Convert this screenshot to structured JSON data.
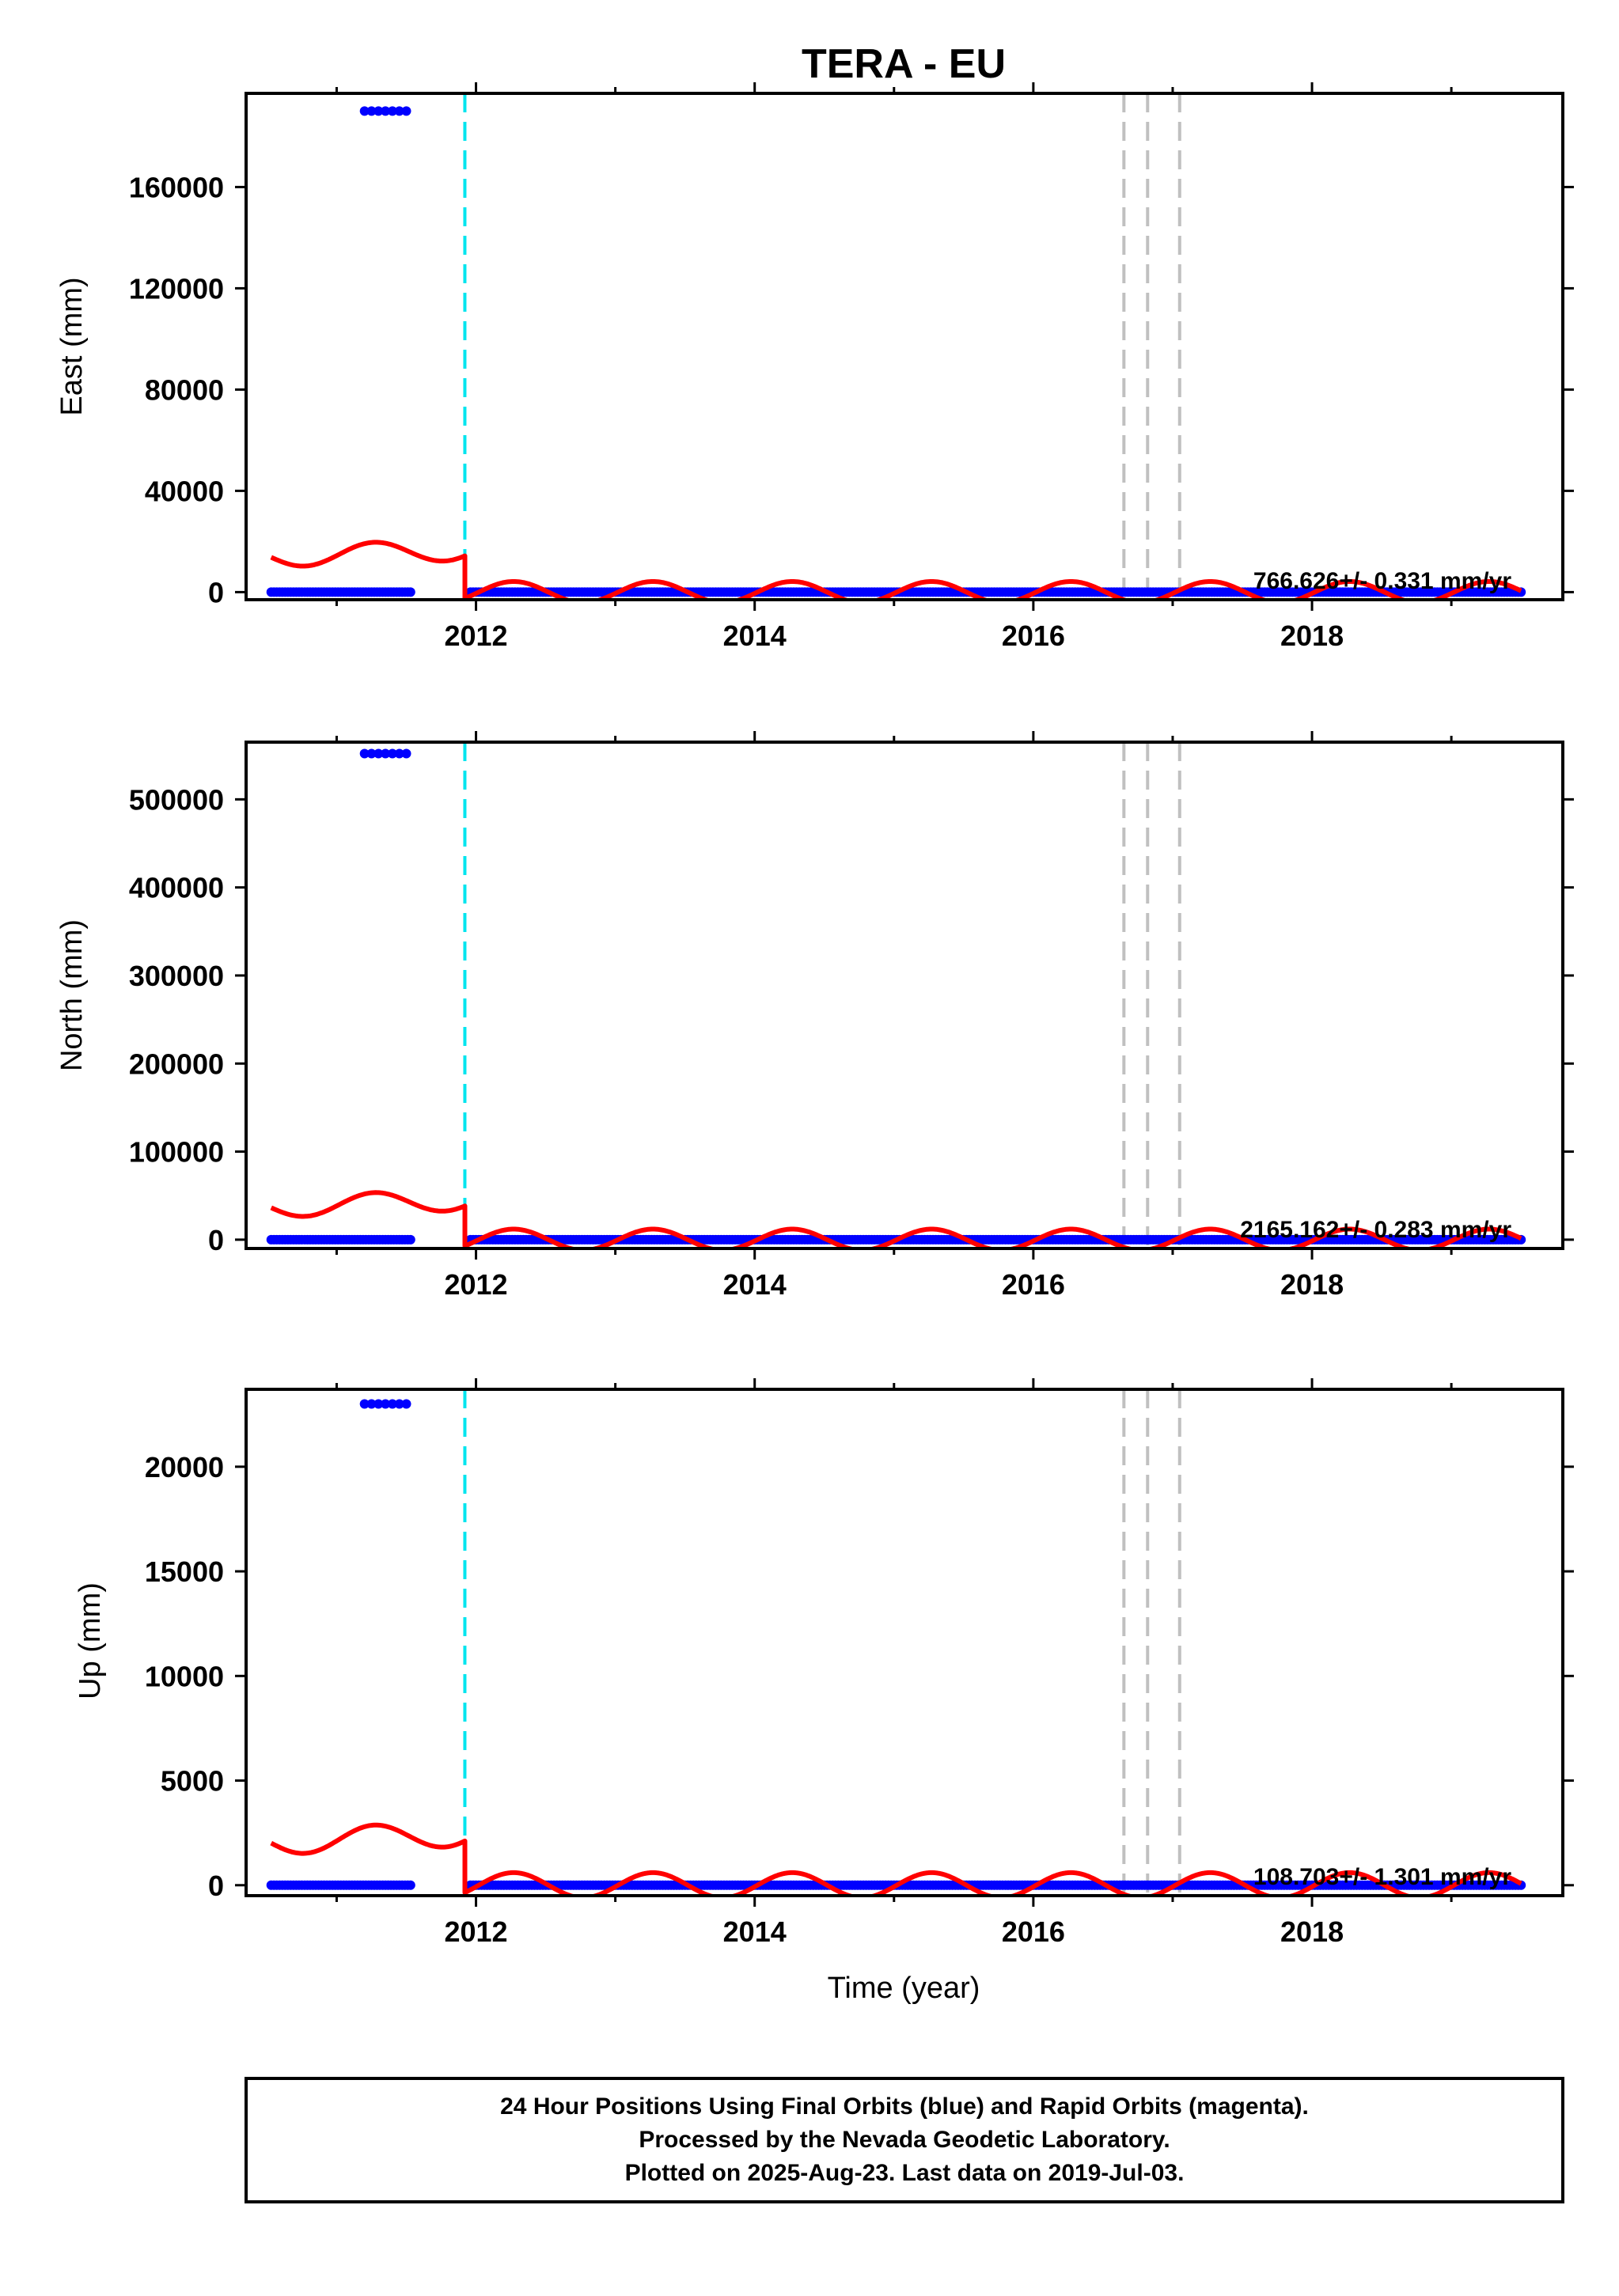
{
  "title": "TERA - EU",
  "footer": {
    "line1": "24 Hour Positions Using Final Orbits (blue) and Rapid Orbits (magenta).",
    "line2": "Processed by the Nevada Geodetic Laboratory.",
    "line3": "Plotted on 2025-Aug-23. Last data on 2019-Jul-03."
  },
  "colors": {
    "final_orbits": "#0000ff",
    "model": "#ff0000",
    "equipment_change": "#00e5ee",
    "earthquake": "#c0c0c0",
    "axes": "#000000"
  },
  "chart_data": [
    {
      "type": "scatter",
      "panel": "east",
      "ylabel": "East (mm)",
      "xlabel": "",
      "xlim": [
        2010.35,
        2019.8
      ],
      "ylim": [
        -3000,
        197000
      ],
      "x_ticks": [
        2012,
        2014,
        2016,
        2018
      ],
      "y_ticks": [
        0,
        40000,
        80000,
        120000,
        160000
      ],
      "rate_label": "766.626+/- 0.331 mm/yr",
      "series": [
        {
          "kind": "points",
          "segments": [
            {
              "x": [
                2010.53,
                2011.53
              ],
              "y": 0
            },
            {
              "x": [
                2011.96,
                2019.5
              ],
              "y": 0
            }
          ],
          "outliers": {
            "x": [
              2011.2,
              2011.5
            ],
            "y": 190000
          }
        },
        {
          "kind": "model-curve",
          "pre_offset": {
            "x": [
              2010.53,
              2011.92
            ],
            "base": 14000,
            "trend_per_yr": 2000,
            "annual_amplitude": 4200,
            "phase_peak": 2011.27
          },
          "post_offset": {
            "x": [
              2011.92,
              2019.5
            ],
            "base": 0,
            "annual_amplitude": 4200,
            "phase_peak": 2012.27
          }
        }
      ],
      "vertical_lines": [
        {
          "kind": "equipment-change",
          "x": 2011.92
        },
        {
          "kind": "earthquake",
          "x": 2016.65
        },
        {
          "kind": "earthquake",
          "x": 2016.82
        },
        {
          "kind": "earthquake",
          "x": 2017.05
        }
      ]
    },
    {
      "type": "scatter",
      "panel": "north",
      "ylabel": "North (mm)",
      "xlabel": "",
      "xlim": [
        2010.35,
        2019.8
      ],
      "ylim": [
        -10000,
        565000
      ],
      "x_ticks": [
        2012,
        2014,
        2016,
        2018
      ],
      "y_ticks": [
        0,
        100000,
        200000,
        300000,
        400000,
        500000
      ],
      "rate_label": "2165.162+/- 0.283 mm/yr",
      "series": [
        {
          "kind": "points",
          "segments": [
            {
              "x": [
                2010.53,
                2011.53
              ],
              "y": 0
            },
            {
              "x": [
                2011.96,
                2019.5
              ],
              "y": 0
            }
          ],
          "outliers": {
            "x": [
              2011.2,
              2011.5
            ],
            "y": 552000
          }
        },
        {
          "kind": "model-curve",
          "pre_offset": {
            "x": [
              2010.53,
              2011.92
            ],
            "base": 37000,
            "trend_per_yr": 6000,
            "annual_amplitude": 12000,
            "phase_peak": 2011.27
          },
          "post_offset": {
            "x": [
              2011.92,
              2019.5
            ],
            "base": 0,
            "annual_amplitude": 12000,
            "phase_peak": 2012.27
          }
        }
      ],
      "vertical_lines": [
        {
          "kind": "equipment-change",
          "x": 2011.92
        },
        {
          "kind": "earthquake",
          "x": 2016.65
        },
        {
          "kind": "earthquake",
          "x": 2016.82
        },
        {
          "kind": "earthquake",
          "x": 2017.05
        }
      ]
    },
    {
      "type": "scatter",
      "panel": "up",
      "ylabel": "Up (mm)",
      "xlabel": "Time (year)",
      "xlim": [
        2010.35,
        2019.8
      ],
      "ylim": [
        -500,
        23700
      ],
      "x_ticks": [
        2012,
        2014,
        2016,
        2018
      ],
      "y_ticks": [
        0,
        5000,
        10000,
        15000,
        20000
      ],
      "rate_label": "108.703+/- 1.301 mm/yr",
      "series": [
        {
          "kind": "points",
          "segments": [
            {
              "x": [
                2010.53,
                2011.53
              ],
              "y": 0
            },
            {
              "x": [
                2011.96,
                2019.5
              ],
              "y": 0
            }
          ],
          "outliers": {
            "x": [
              2011.2,
              2011.5
            ],
            "y": 23000
          }
        },
        {
          "kind": "model-curve",
          "pre_offset": {
            "x": [
              2010.53,
              2011.92
            ],
            "base": 2050,
            "trend_per_yr": 300,
            "annual_amplitude": 600,
            "phase_peak": 2011.27
          },
          "post_offset": {
            "x": [
              2011.92,
              2019.5
            ],
            "base": 0,
            "annual_amplitude": 600,
            "phase_peak": 2012.27
          }
        }
      ],
      "vertical_lines": [
        {
          "kind": "equipment-change",
          "x": 2011.92
        },
        {
          "kind": "earthquake",
          "x": 2016.65
        },
        {
          "kind": "earthquake",
          "x": 2016.82
        },
        {
          "kind": "earthquake",
          "x": 2017.05
        }
      ]
    }
  ]
}
